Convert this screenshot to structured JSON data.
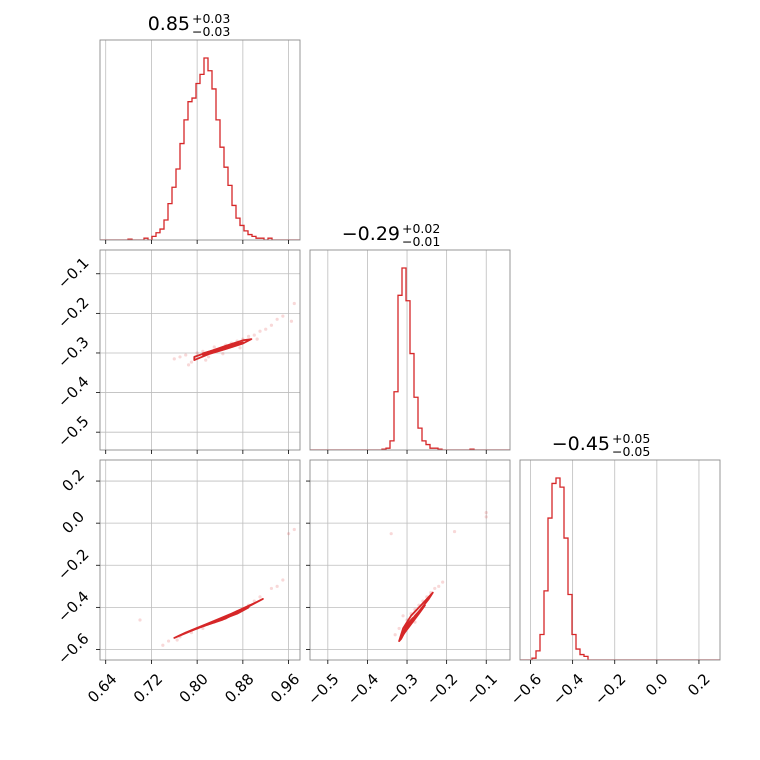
{
  "chart_data": {
    "type": "corner",
    "accent_color": "#d62728",
    "grid": true,
    "parameters": [
      {
        "title_value": "0.85",
        "title_plus": "+0.03",
        "title_minus": "−0.03",
        "range": [
          0.63,
          0.98
        ],
        "ticks": [
          0.64,
          0.72,
          0.8,
          0.88,
          0.96
        ],
        "tick_labels": [
          "0.64",
          "0.72",
          "0.80",
          "0.88",
          "0.96"
        ],
        "hist": {
          "x_start": 0.63,
          "x_end": 0.98,
          "counts": [
            0,
            0,
            0,
            0,
            0,
            0,
            0,
            0.005,
            0,
            0,
            0,
            0.01,
            0,
            0.02,
            0.04,
            0.06,
            0.11,
            0.2,
            0.29,
            0.39,
            0.53,
            0.66,
            0.76,
            0.78,
            0.86,
            0.91,
            1.0,
            0.93,
            0.83,
            0.66,
            0.51,
            0.4,
            0.3,
            0.19,
            0.12,
            0.08,
            0.05,
            0.03,
            0.02,
            0.01,
            0.01,
            0,
            0.01,
            0,
            0,
            0,
            0,
            0,
            0,
            0
          ]
        }
      },
      {
        "title_value": "−0.29",
        "title_plus": "+0.02",
        "title_minus": "−0.01",
        "range": [
          -0.545,
          -0.04
        ],
        "ticks": [
          -0.5,
          -0.4,
          -0.3,
          -0.2,
          -0.1
        ],
        "tick_labels": [
          "−0.5",
          "−0.4",
          "−0.3",
          "−0.2",
          "−0.1"
        ],
        "hist": {
          "x_start": -0.545,
          "x_end": -0.04,
          "counts": [
            0,
            0,
            0,
            0,
            0,
            0,
            0,
            0,
            0,
            0,
            0,
            0,
            0,
            0,
            0,
            0,
            0,
            0,
            0.005,
            0.01,
            0.05,
            0.32,
            0.85,
            1.0,
            0.82,
            0.53,
            0.29,
            0.12,
            0.05,
            0.03,
            0.01,
            0.01,
            0.005,
            0,
            0,
            0,
            0,
            0,
            0,
            0,
            0.005,
            0,
            0,
            0,
            0,
            0,
            0,
            0,
            0,
            0
          ]
        }
      },
      {
        "title_value": "−0.45",
        "title_plus": "+0.05",
        "title_minus": "−0.05",
        "range": [
          -0.65,
          0.3
        ],
        "ticks": [
          -0.6,
          -0.4,
          -0.2,
          0.0,
          0.2
        ],
        "tick_labels": [
          "−0.6",
          "−0.4",
          "−0.2",
          "0.0",
          "0.2"
        ],
        "hist": {
          "x_start": -0.65,
          "x_end": 0.3,
          "counts": [
            0,
            0,
            0,
            0.01,
            0.05,
            0.14,
            0.38,
            0.78,
            0.97,
            1.0,
            0.95,
            0.67,
            0.36,
            0.14,
            0.06,
            0.03,
            0.02,
            0,
            0,
            0,
            0,
            0,
            0,
            0,
            0,
            0,
            0,
            0,
            0,
            0,
            0,
            0,
            0,
            0,
            0,
            0,
            0,
            0,
            0,
            0,
            0,
            0,
            0,
            0,
            0,
            0,
            0,
            0,
            0,
            0
          ]
        }
      }
    ],
    "scatter_panels": [
      {
        "x_param": 0,
        "y_param": 1,
        "correlation": "positive",
        "contours": [
          [
            [
              0.795,
              -0.318
            ],
            [
              0.82,
              -0.303
            ],
            [
              0.85,
              -0.29
            ],
            [
              0.88,
              -0.276
            ],
            [
              0.895,
              -0.265
            ],
            [
              0.88,
              -0.268
            ],
            [
              0.85,
              -0.282
            ],
            [
              0.82,
              -0.297
            ],
            [
              0.795,
              -0.31
            ],
            [
              0.795,
              -0.318
            ]
          ],
          [
            [
              0.81,
              -0.305
            ],
            [
              0.85,
              -0.288
            ],
            [
              0.88,
              -0.273
            ],
            [
              0.85,
              -0.284
            ],
            [
              0.81,
              -0.301
            ],
            [
              0.81,
              -0.305
            ]
          ],
          [
            [
              0.83,
              -0.298
            ],
            [
              0.86,
              -0.285
            ],
            [
              0.875,
              -0.277
            ],
            [
              0.86,
              -0.282
            ],
            [
              0.83,
              -0.295
            ],
            [
              0.83,
              -0.298
            ]
          ]
        ],
        "points": [
          [
            0.77,
            -0.31
          ],
          [
            0.78,
            -0.305
          ],
          [
            0.79,
            -0.323
          ],
          [
            0.8,
            -0.3
          ],
          [
            0.81,
            -0.296
          ],
          [
            0.82,
            -0.31
          ],
          [
            0.83,
            -0.285
          ],
          [
            0.84,
            -0.29
          ],
          [
            0.85,
            -0.28
          ],
          [
            0.86,
            -0.275
          ],
          [
            0.87,
            -0.27
          ],
          [
            0.88,
            -0.265
          ],
          [
            0.89,
            -0.258
          ],
          [
            0.9,
            -0.255
          ],
          [
            0.91,
            -0.245
          ],
          [
            0.92,
            -0.24
          ],
          [
            0.93,
            -0.23
          ],
          [
            0.94,
            -0.215
          ],
          [
            0.95,
            -0.207
          ],
          [
            0.97,
            -0.175
          ],
          [
            0.965,
            -0.22
          ],
          [
            0.76,
            -0.315
          ],
          [
            0.785,
            -0.33
          ],
          [
            0.815,
            -0.318
          ],
          [
            0.845,
            -0.302
          ],
          [
            0.875,
            -0.287
          ],
          [
            0.905,
            -0.265
          ]
        ]
      },
      {
        "x_param": 0,
        "y_param": 2,
        "correlation": "positive",
        "contours": [
          [
            [
              0.76,
              -0.545
            ],
            [
              0.8,
              -0.5
            ],
            [
              0.84,
              -0.46
            ],
            [
              0.88,
              -0.41
            ],
            [
              0.915,
              -0.36
            ],
            [
              0.9,
              -0.38
            ],
            [
              0.86,
              -0.43
            ],
            [
              0.82,
              -0.475
            ],
            [
              0.78,
              -0.52
            ],
            [
              0.76,
              -0.545
            ]
          ],
          [
            [
              0.79,
              -0.51
            ],
            [
              0.83,
              -0.47
            ],
            [
              0.87,
              -0.43
            ],
            [
              0.89,
              -0.4
            ],
            [
              0.86,
              -0.438
            ],
            [
              0.82,
              -0.478
            ],
            [
              0.79,
              -0.51
            ]
          ],
          [
            [
              0.81,
              -0.49
            ],
            [
              0.845,
              -0.458
            ],
            [
              0.87,
              -0.425
            ],
            [
              0.85,
              -0.453
            ],
            [
              0.81,
              -0.49
            ]
          ]
        ],
        "points": [
          [
            0.7,
            -0.46
          ],
          [
            0.74,
            -0.58
          ],
          [
            0.75,
            -0.56
          ],
          [
            0.77,
            -0.54
          ],
          [
            0.79,
            -0.52
          ],
          [
            0.81,
            -0.5
          ],
          [
            0.83,
            -0.47
          ],
          [
            0.85,
            -0.45
          ],
          [
            0.87,
            -0.42
          ],
          [
            0.89,
            -0.39
          ],
          [
            0.91,
            -0.35
          ],
          [
            0.93,
            -0.31
          ],
          [
            0.95,
            -0.27
          ],
          [
            0.97,
            -0.03
          ],
          [
            0.96,
            -0.05
          ],
          [
            0.765,
            -0.555
          ],
          [
            0.8,
            -0.5
          ],
          [
            0.9,
            -0.37
          ],
          [
            0.94,
            -0.3
          ]
        ]
      },
      {
        "x_param": 1,
        "y_param": 2,
        "correlation": "positive",
        "contours": [
          [
            [
              -0.32,
              -0.56
            ],
            [
              -0.31,
              -0.5
            ],
            [
              -0.29,
              -0.44
            ],
            [
              -0.26,
              -0.38
            ],
            [
              -0.235,
              -0.33
            ],
            [
              -0.245,
              -0.36
            ],
            [
              -0.27,
              -0.42
            ],
            [
              -0.295,
              -0.48
            ],
            [
              -0.315,
              -0.55
            ],
            [
              -0.32,
              -0.56
            ]
          ],
          [
            [
              -0.315,
              -0.54
            ],
            [
              -0.3,
              -0.49
            ],
            [
              -0.28,
              -0.44
            ],
            [
              -0.255,
              -0.39
            ],
            [
              -0.27,
              -0.43
            ],
            [
              -0.29,
              -0.48
            ],
            [
              -0.31,
              -0.53
            ],
            [
              -0.315,
              -0.54
            ]
          ],
          [
            [
              -0.31,
              -0.52
            ],
            [
              -0.3,
              -0.48
            ],
            [
              -0.285,
              -0.45
            ],
            [
              -0.295,
              -0.49
            ],
            [
              -0.31,
              -0.52
            ]
          ]
        ],
        "points": [
          [
            -0.33,
            -0.53
          ],
          [
            -0.32,
            -0.5
          ],
          [
            -0.3,
            -0.46
          ],
          [
            -0.29,
            -0.43
          ],
          [
            -0.28,
            -0.41
          ],
          [
            -0.27,
            -0.39
          ],
          [
            -0.26,
            -0.37
          ],
          [
            -0.25,
            -0.35
          ],
          [
            -0.24,
            -0.33
          ],
          [
            -0.23,
            -0.31
          ],
          [
            -0.22,
            -0.3
          ],
          [
            -0.21,
            -0.28
          ],
          [
            -0.18,
            -0.04
          ],
          [
            -0.1,
            0.05
          ],
          [
            -0.1,
            0.03
          ],
          [
            -0.34,
            -0.05
          ],
          [
            -0.31,
            -0.44
          ],
          [
            -0.28,
            -0.47
          ]
        ]
      }
    ]
  }
}
